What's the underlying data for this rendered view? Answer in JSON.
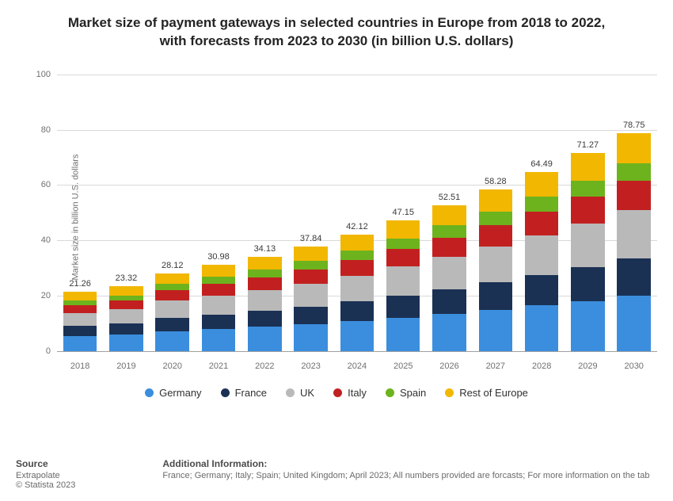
{
  "title": {
    "line1": "Market size of payment gateways in selected countries in Europe from 2018 to 2022,",
    "line2": "with forecasts from 2023 to 2030 (in billion U.S. dollars)",
    "fontsize": 17
  },
  "chart": {
    "type": "stacked-bar",
    "ylabel": "Market size in billion U.S. dollars",
    "ylim": [
      0,
      100
    ],
    "yticks": [
      0,
      20,
      40,
      60,
      80,
      100
    ],
    "categories": [
      "2018",
      "2019",
      "2020",
      "2021",
      "2022",
      "2023",
      "2024",
      "2025",
      "2026",
      "2027",
      "2028",
      "2029",
      "2030"
    ],
    "totals": [
      "21.26",
      "23.32",
      "28.12",
      "30.98",
      "34.13",
      "37.84",
      "42.12",
      "47.15",
      "52.51",
      "58.28",
      "64.49",
      "71.27",
      "78.75"
    ],
    "series": {
      "colors": [
        "#3b8ede",
        "#1a3154",
        "#b9b9b9",
        "#c22020",
        "#6db31e",
        "#f2b701"
      ],
      "stacks": [
        [
          5.4,
          3.6,
          4.7,
          2.8,
          1.8,
          3.0
        ],
        [
          5.9,
          4.0,
          5.2,
          3.1,
          1.9,
          3.2
        ],
        [
          7.2,
          4.8,
          6.2,
          3.7,
          2.3,
          3.9
        ],
        [
          7.9,
          5.3,
          6.9,
          4.1,
          2.6,
          4.2
        ],
        [
          8.7,
          5.8,
          7.6,
          4.5,
          2.8,
          4.7
        ],
        [
          9.6,
          6.4,
          8.4,
          5.0,
          3.1,
          5.2
        ],
        [
          10.7,
          7.2,
          9.3,
          5.6,
          3.5,
          5.8
        ],
        [
          12.0,
          8.0,
          10.4,
          6.3,
          3.9,
          6.5
        ],
        [
          13.4,
          8.9,
          11.6,
          7.0,
          4.4,
          7.2
        ],
        [
          14.8,
          9.9,
          12.9,
          7.8,
          4.8,
          8.0
        ],
        [
          16.4,
          11.0,
          14.3,
          8.6,
          5.4,
          8.8
        ],
        [
          18.1,
          12.2,
          15.8,
          9.5,
          5.9,
          9.8
        ],
        [
          20.0,
          13.4,
          17.4,
          10.5,
          6.5,
          10.8
        ]
      ]
    }
  },
  "legend": {
    "items": [
      "Germany",
      "France",
      "UK",
      "Italy",
      "Spain",
      "Rest of Europe"
    ]
  },
  "footer": {
    "source_heading": "Source",
    "source_line1": "Extrapolate",
    "source_line2": "© Statista 2023",
    "info_heading": "Additional Information:",
    "info_text": "France; Germany; Italy; Spain; United Kingdom; April 2023; All numbers provided are forcasts; For more information on the tab"
  },
  "style": {
    "background_color": "#ffffff",
    "grid_color": "#d9d9d9",
    "axis_text_color": "#707070",
    "title_color": "#242424"
  }
}
